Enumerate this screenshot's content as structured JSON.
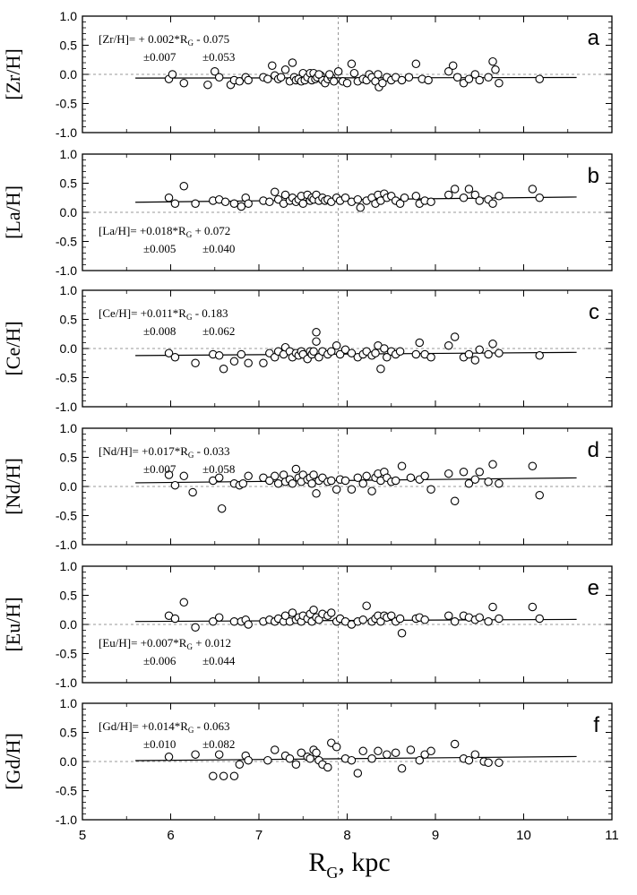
{
  "x_axis": {
    "label_main": "R",
    "label_sub": "G",
    "label_unit": ", kpc",
    "range": [
      5,
      11
    ],
    "ticks": [
      "5",
      "6",
      "7",
      "8",
      "9",
      "10",
      "11"
    ]
  },
  "y_ticks": [
    "1.0",
    "0.5",
    "0.0",
    "-0.5",
    "-1.0"
  ],
  "vline_x": 7.9,
  "chart_data": [
    {
      "type": "scatter",
      "letter": "a",
      "ylabel": "[Zr/H]",
      "ylim": [
        -1,
        1
      ],
      "fit": {
        "slope": 0.002,
        "intercept": -0.075,
        "x_range": [
          5.6,
          10.6
        ]
      },
      "equation": {
        "prefix": "[Zr/H]= + 0.002*R",
        "sub": "G",
        "suffix": " - 0.075",
        "err_slope": "±0.007",
        "err_intercept": "±0.053",
        "position": "top"
      },
      "x": [
        5.98,
        6.02,
        6.15,
        6.42,
        6.5,
        6.55,
        6.68,
        6.72,
        6.78,
        6.85,
        6.88,
        7.05,
        7.1,
        7.15,
        7.18,
        7.22,
        7.25,
        7.3,
        7.35,
        7.38,
        7.4,
        7.42,
        7.45,
        7.48,
        7.5,
        7.52,
        7.55,
        7.58,
        7.6,
        7.62,
        7.64,
        7.66,
        7.7,
        7.72,
        7.75,
        7.78,
        7.82,
        7.85,
        7.9,
        7.95,
        8.0,
        8.05,
        8.08,
        8.12,
        8.18,
        8.22,
        8.25,
        8.28,
        8.32,
        8.36,
        8.4,
        8.45,
        8.5,
        8.55,
        8.62,
        8.7,
        8.78,
        8.85,
        8.92,
        9.15,
        9.2,
        9.25,
        9.32,
        9.38,
        9.45,
        9.5,
        9.6,
        9.65,
        9.68,
        9.72,
        10.18,
        7.68,
        7.8,
        8.35
      ],
      "y": [
        -0.08,
        0.0,
        -0.15,
        -0.18,
        0.05,
        -0.05,
        -0.18,
        -0.1,
        -0.12,
        -0.05,
        -0.1,
        -0.05,
        -0.08,
        0.15,
        -0.02,
        -0.08,
        -0.05,
        0.08,
        -0.12,
        0.2,
        -0.05,
        -0.1,
        -0.08,
        -0.12,
        0.02,
        -0.1,
        -0.05,
        0.02,
        -0.1,
        0.02,
        -0.08,
        -0.05,
        -0.02,
        -0.1,
        -0.15,
        -0.08,
        -0.05,
        -0.12,
        0.05,
        -0.12,
        -0.15,
        0.18,
        0.02,
        -0.12,
        -0.08,
        -0.1,
        0.0,
        -0.05,
        -0.12,
        -0.22,
        -0.15,
        -0.05,
        -0.1,
        -0.05,
        -0.1,
        -0.05,
        0.18,
        -0.08,
        -0.1,
        0.05,
        0.15,
        -0.05,
        -0.15,
        -0.08,
        0.0,
        -0.1,
        -0.05,
        0.22,
        0.08,
        -0.15,
        -0.08,
        0.0,
        0.0,
        0.0
      ]
    },
    {
      "type": "scatter",
      "letter": "b",
      "ylabel": "[La/H]",
      "ylim": [
        -1,
        1
      ],
      "fit": {
        "slope": 0.018,
        "intercept": 0.072,
        "x_range": [
          5.6,
          10.6
        ]
      },
      "equation": {
        "prefix": "[La/H]= +0.018*R",
        "sub": "G",
        "suffix": " + 0.072",
        "err_slope": "±0.005",
        "err_intercept": "±0.040",
        "position": "bottom"
      },
      "x": [
        5.98,
        6.05,
        6.15,
        6.28,
        6.48,
        6.55,
        6.62,
        6.72,
        6.8,
        6.85,
        6.88,
        7.05,
        7.12,
        7.18,
        7.22,
        7.28,
        7.3,
        7.35,
        7.38,
        7.42,
        7.45,
        7.48,
        7.5,
        7.55,
        7.58,
        7.6,
        7.62,
        7.65,
        7.68,
        7.72,
        7.75,
        7.78,
        7.82,
        7.88,
        7.92,
        7.98,
        8.05,
        8.12,
        8.15,
        8.22,
        8.28,
        8.32,
        8.35,
        8.38,
        8.42,
        8.45,
        8.5,
        8.55,
        8.6,
        8.65,
        8.78,
        8.82,
        8.88,
        8.95,
        9.15,
        9.22,
        9.32,
        9.38,
        9.45,
        9.5,
        9.6,
        9.65,
        9.72,
        10.1,
        10.18
      ],
      "y": [
        0.25,
        0.15,
        0.45,
        0.15,
        0.2,
        0.22,
        0.18,
        0.15,
        0.1,
        0.25,
        0.15,
        0.2,
        0.18,
        0.35,
        0.22,
        0.15,
        0.3,
        0.2,
        0.25,
        0.18,
        0.22,
        0.28,
        0.15,
        0.3,
        0.2,
        0.25,
        0.22,
        0.3,
        0.2,
        0.25,
        0.2,
        0.22,
        0.18,
        0.25,
        0.2,
        0.25,
        0.18,
        0.22,
        0.08,
        0.2,
        0.25,
        0.15,
        0.3,
        0.2,
        0.32,
        0.25,
        0.28,
        0.2,
        0.15,
        0.25,
        0.28,
        0.15,
        0.2,
        0.18,
        0.3,
        0.4,
        0.25,
        0.4,
        0.3,
        0.2,
        0.22,
        0.15,
        0.28,
        0.4,
        0.25
      ]
    },
    {
      "type": "scatter",
      "letter": "c",
      "ylabel": "[Ce/H]",
      "ylim": [
        -1,
        1
      ],
      "fit": {
        "slope": 0.011,
        "intercept": -0.183,
        "x_range": [
          5.6,
          10.6
        ]
      },
      "equation": {
        "prefix": "[Ce/H]= +0.011*R",
        "sub": "G",
        "suffix": " - 0.183",
        "err_slope": "±0.008",
        "err_intercept": "±0.062",
        "position": "top"
      },
      "x": [
        5.98,
        6.05,
        6.28,
        6.48,
        6.55,
        6.6,
        6.72,
        6.8,
        6.88,
        7.05,
        7.12,
        7.18,
        7.22,
        7.28,
        7.3,
        7.35,
        7.38,
        7.42,
        7.45,
        7.48,
        7.5,
        7.55,
        7.58,
        7.6,
        7.62,
        7.65,
        7.68,
        7.72,
        7.78,
        7.82,
        7.88,
        7.92,
        7.98,
        8.05,
        8.12,
        8.18,
        8.22,
        8.28,
        8.32,
        8.35,
        8.38,
        8.42,
        8.45,
        8.5,
        8.55,
        8.6,
        8.78,
        8.82,
        8.88,
        8.95,
        9.15,
        9.22,
        9.32,
        9.38,
        9.45,
        9.5,
        9.6,
        9.65,
        9.72,
        10.18,
        7.65
      ],
      "y": [
        -0.08,
        -0.15,
        -0.25,
        -0.1,
        -0.12,
        -0.35,
        -0.22,
        -0.1,
        -0.25,
        -0.25,
        -0.08,
        -0.15,
        -0.05,
        -0.1,
        0.02,
        -0.05,
        -0.15,
        -0.08,
        -0.12,
        -0.05,
        -0.1,
        -0.18,
        -0.05,
        -0.1,
        -0.05,
        0.12,
        -0.15,
        -0.05,
        -0.1,
        -0.05,
        0.05,
        -0.1,
        -0.02,
        -0.08,
        -0.15,
        -0.1,
        -0.05,
        -0.12,
        -0.08,
        0.05,
        -0.35,
        0.0,
        -0.15,
        -0.05,
        -0.1,
        -0.05,
        -0.1,
        0.1,
        -0.1,
        -0.15,
        0.05,
        0.2,
        -0.15,
        -0.1,
        -0.2,
        -0.02,
        -0.1,
        0.08,
        -0.08,
        -0.12,
        0.28
      ]
    },
    {
      "type": "scatter",
      "letter": "d",
      "ylabel": "[Nd/H]",
      "ylim": [
        -1,
        1
      ],
      "fit": {
        "slope": 0.017,
        "intercept": -0.033,
        "x_range": [
          5.6,
          10.6
        ]
      },
      "equation": {
        "prefix": "[Nd/H]= +0.017*R",
        "sub": "G",
        "suffix": " - 0.033",
        "err_slope": "±0.007",
        "err_intercept": "±0.058",
        "position": "top"
      },
      "x": [
        5.98,
        6.05,
        6.15,
        6.25,
        6.48,
        6.55,
        6.58,
        6.72,
        6.78,
        6.82,
        6.88,
        7.05,
        7.12,
        7.18,
        7.22,
        7.28,
        7.3,
        7.35,
        7.38,
        7.42,
        7.45,
        7.48,
        7.5,
        7.55,
        7.58,
        7.6,
        7.62,
        7.65,
        7.68,
        7.72,
        7.78,
        7.82,
        7.88,
        7.92,
        7.98,
        8.05,
        8.12,
        8.18,
        8.22,
        8.28,
        8.32,
        8.35,
        8.38,
        8.42,
        8.45,
        8.5,
        8.55,
        8.62,
        8.72,
        8.82,
        8.88,
        8.95,
        9.15,
        9.22,
        9.32,
        9.38,
        9.45,
        9.5,
        9.6,
        9.65,
        9.72,
        10.1,
        10.18
      ],
      "y": [
        0.2,
        0.02,
        0.18,
        -0.1,
        0.1,
        0.15,
        -0.38,
        0.05,
        0.02,
        0.05,
        0.18,
        0.15,
        0.1,
        0.18,
        0.05,
        0.2,
        0.08,
        0.12,
        0.05,
        0.3,
        0.15,
        0.08,
        0.2,
        0.12,
        0.15,
        0.05,
        0.2,
        -0.12,
        0.1,
        0.15,
        0.08,
        0.1,
        -0.05,
        0.12,
        0.1,
        -0.05,
        0.15,
        0.05,
        0.18,
        -0.08,
        0.15,
        0.22,
        0.1,
        0.25,
        0.15,
        0.08,
        0.1,
        0.35,
        0.15,
        0.12,
        0.18,
        -0.05,
        0.22,
        -0.25,
        0.25,
        0.05,
        0.12,
        0.25,
        0.08,
        0.38,
        0.05,
        0.35,
        -0.15
      ]
    },
    {
      "type": "scatter",
      "letter": "e",
      "ylabel": "[Eu/H]",
      "ylim": [
        -1,
        1
      ],
      "fit": {
        "slope": 0.007,
        "intercept": 0.012,
        "x_range": [
          5.6,
          10.6
        ]
      },
      "equation": {
        "prefix": "[Eu/H]= +0.007*R",
        "sub": "G",
        "suffix": " + 0.012",
        "err_slope": "±0.006",
        "err_intercept": "±0.044",
        "position": "bottom"
      },
      "x": [
        5.98,
        6.05,
        6.15,
        6.28,
        6.48,
        6.55,
        6.72,
        6.8,
        6.85,
        6.88,
        7.05,
        7.12,
        7.18,
        7.22,
        7.28,
        7.3,
        7.35,
        7.38,
        7.42,
        7.45,
        7.48,
        7.5,
        7.55,
        7.58,
        7.6,
        7.62,
        7.65,
        7.68,
        7.72,
        7.78,
        7.82,
        7.88,
        7.92,
        7.98,
        8.05,
        8.12,
        8.18,
        8.22,
        8.28,
        8.32,
        8.35,
        8.38,
        8.42,
        8.45,
        8.5,
        8.55,
        8.6,
        8.62,
        8.78,
        8.82,
        8.88,
        9.15,
        9.22,
        9.32,
        9.38,
        9.45,
        9.5,
        9.6,
        9.65,
        9.72,
        10.1,
        10.18
      ],
      "y": [
        0.15,
        0.1,
        0.38,
        -0.05,
        0.05,
        0.12,
        0.05,
        0.05,
        0.08,
        0.0,
        0.05,
        0.08,
        0.05,
        0.1,
        0.05,
        0.15,
        0.05,
        0.2,
        0.08,
        0.12,
        0.05,
        0.15,
        0.1,
        0.18,
        0.05,
        0.25,
        0.12,
        0.08,
        0.18,
        0.15,
        0.2,
        0.05,
        0.1,
        0.05,
        0.0,
        0.05,
        0.08,
        0.32,
        0.05,
        0.1,
        0.15,
        0.05,
        0.15,
        0.12,
        0.15,
        0.05,
        0.1,
        -0.15,
        0.1,
        0.12,
        0.08,
        0.15,
        0.05,
        0.15,
        0.12,
        0.08,
        0.12,
        0.05,
        0.3,
        0.1,
        0.3,
        0.1
      ]
    },
    {
      "type": "scatter",
      "letter": "f",
      "ylabel": "[Gd/H]",
      "ylim": [
        -1,
        1
      ],
      "fit": {
        "slope": 0.014,
        "intercept": -0.063,
        "x_range": [
          5.6,
          10.6
        ]
      },
      "equation": {
        "prefix": "[Gd/H]= +0.014*R",
        "sub": "G",
        "suffix": " - 0.063",
        "err_slope": "±0.010",
        "err_intercept": "±0.082",
        "position": "top"
      },
      "x": [
        5.98,
        6.28,
        6.48,
        6.55,
        6.6,
        6.72,
        6.78,
        6.85,
        6.88,
        7.1,
        7.18,
        7.3,
        7.35,
        7.42,
        7.48,
        7.55,
        7.58,
        7.62,
        7.65,
        7.68,
        7.72,
        7.78,
        7.82,
        7.88,
        7.98,
        8.05,
        8.12,
        8.18,
        8.28,
        8.35,
        8.45,
        8.55,
        8.62,
        8.72,
        8.82,
        8.88,
        8.95,
        9.22,
        9.32,
        9.38,
        9.45,
        9.55,
        9.6,
        9.72
      ],
      "y": [
        0.08,
        0.12,
        -0.25,
        0.12,
        -0.25,
        -0.25,
        -0.05,
        0.1,
        0.02,
        0.02,
        0.2,
        0.1,
        0.05,
        -0.05,
        0.15,
        0.08,
        0.05,
        0.2,
        0.15,
        0.02,
        -0.05,
        -0.1,
        0.32,
        0.25,
        0.05,
        0.02,
        -0.2,
        0.18,
        0.05,
        0.18,
        0.12,
        0.15,
        -0.12,
        0.2,
        0.02,
        0.12,
        0.18,
        0.3,
        0.05,
        0.02,
        0.12,
        0.0,
        -0.02,
        -0.02
      ]
    }
  ]
}
